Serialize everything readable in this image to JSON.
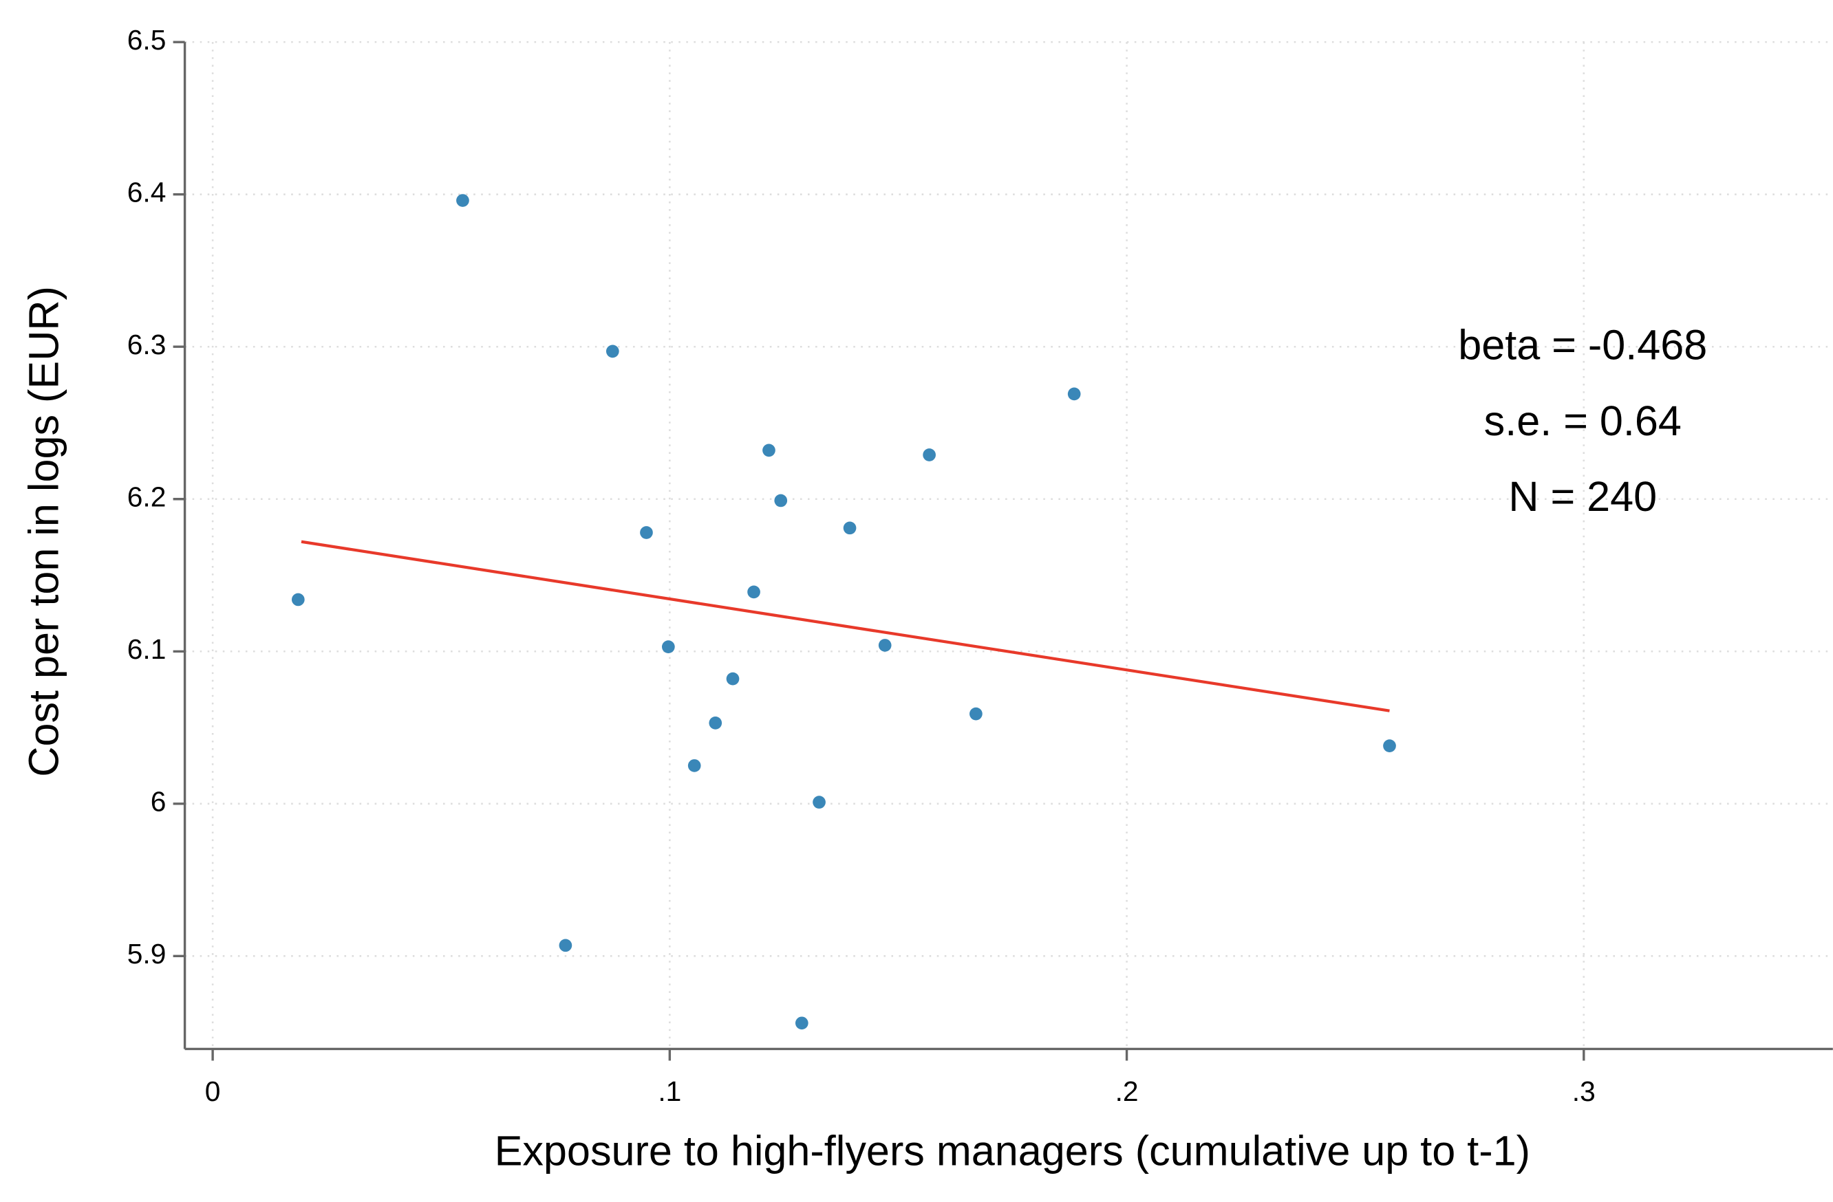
{
  "chart_data": {
    "type": "scatter",
    "xlabel": "Exposure to high-flyers managers (cumulative up to t-1)",
    "ylabel": "Cost per ton in logs (EUR)",
    "annotations": [
      "beta = -0.468",
      "s.e. = 0.64",
      "N = 240"
    ],
    "xlim": [
      -0.0061,
      0.3545
    ],
    "ylim": [
      5.839,
      6.5
    ],
    "xticks": [
      0,
      {
        "value": 0.1,
        "label": ".1"
      },
      {
        "value": 0.2,
        "label": ".2"
      },
      {
        "value": 0.3,
        "label": ".3"
      }
    ],
    "yticks": [
      5.9,
      6,
      6.1,
      6.2,
      6.3,
      6.4,
      6.5
    ],
    "grid": true,
    "series": [
      {
        "type": "scatter",
        "color": "#3a87b8",
        "x": [
          0.0187,
          0.0547,
          0.0875,
          0.0949,
          0.0997,
          0.0772,
          0.1054,
          0.11,
          0.1138,
          0.1184,
          0.1217,
          0.1243,
          0.1289,
          0.1327,
          0.1394,
          0.1471,
          0.1568,
          0.167,
          0.1885,
          0.2575
        ],
        "values": [
          6.134,
          6.396,
          6.297,
          6.178,
          6.103,
          5.907,
          6.025,
          6.053,
          6.082,
          6.139,
          6.232,
          6.199,
          5.856,
          6.001,
          6.181,
          6.104,
          6.229,
          6.059,
          6.269,
          6.038
        ]
      },
      {
        "type": "line",
        "color": "#e8392a",
        "x": [
          0.0194,
          0.2575
        ],
        "values": [
          6.172,
          6.061
        ]
      }
    ]
  }
}
